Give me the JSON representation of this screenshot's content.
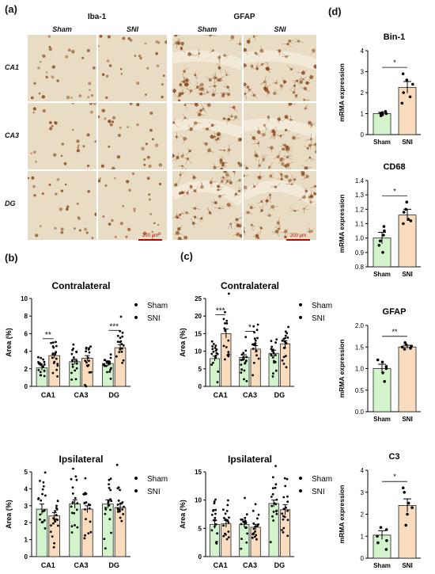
{
  "panels": {
    "a": "(a)",
    "b": "(b)",
    "c": "(c)",
    "d": "(d)"
  },
  "micrographs": {
    "iba1": "Iba-1",
    "gfap": "GFAP",
    "sham": "Sham",
    "sni": "SNI",
    "rows": [
      "CA1",
      "CA3",
      "DG"
    ],
    "scale": "200 μm",
    "stain_color": "#8b4a1c",
    "bg_color": "#e9dcc4"
  },
  "colors": {
    "sham": "#d2f3cc",
    "sni": "#f9dcbd",
    "bar_edge": "#222222"
  },
  "chart_data": [
    {
      "id": "b-contra",
      "type": "bar",
      "title": "Contralateral",
      "ylabel": "Area (%)",
      "ylim": [
        0,
        10
      ],
      "yticks": [
        "0",
        "2",
        "4",
        "6",
        "8",
        "10"
      ],
      "categories": [
        "CA1",
        "CA3",
        "DG"
      ],
      "series": [
        {
          "name": "Sham",
          "values": [
            2.1,
            2.8,
            2.6
          ],
          "sem": [
            0.25,
            0.3,
            0.3
          ]
        },
        {
          "name": "SNI",
          "values": [
            3.5,
            3.2,
            4.4
          ],
          "sem": [
            0.3,
            0.3,
            0.35
          ]
        }
      ],
      "significance": [
        {
          "category": "CA1",
          "label": "**"
        },
        {
          "category": "DG",
          "label": "***"
        }
      ],
      "legend": "top-right"
    },
    {
      "id": "c-contra",
      "type": "bar",
      "title": "Contralateral",
      "ylabel": "Area (%)",
      "ylim": [
        0,
        25
      ],
      "yticks": [
        "0",
        "5",
        "10",
        "15",
        "20",
        "25"
      ],
      "categories": [
        "CA1",
        "CA3",
        "DG"
      ],
      "series": [
        {
          "name": "Sham",
          "values": [
            7.9,
            8.2,
            9.4
          ],
          "sem": [
            0.7,
            0.8,
            0.9
          ]
        },
        {
          "name": "SNI",
          "values": [
            15.0,
            10.6,
            12.1
          ],
          "sem": [
            1.3,
            1.0,
            0.9
          ]
        }
      ],
      "significance": [
        {
          "category": "CA1",
          "label": "***"
        },
        {
          "category": "CA3",
          "label": "*"
        }
      ],
      "legend": "top-right"
    },
    {
      "id": "b-ipsi",
      "type": "bar",
      "title": "Ipsilateral",
      "ylabel": "Area (%)",
      "ylim": [
        0,
        5
      ],
      "yticks": [
        "0",
        "1",
        "2",
        "3",
        "4",
        "5"
      ],
      "categories": [
        "CA1",
        "CA3",
        "DG"
      ],
      "series": [
        {
          "name": "Sham",
          "values": [
            2.8,
            3.1,
            3.1
          ],
          "sem": [
            0.3,
            0.25,
            0.25
          ]
        },
        {
          "name": "SNI",
          "values": [
            2.4,
            2.8,
            2.9
          ],
          "sem": [
            0.2,
            0.2,
            0.2
          ]
        }
      ],
      "significance": [],
      "legend": "top-right"
    },
    {
      "id": "c-ipsi",
      "type": "bar",
      "title": "Ipsilateral",
      "ylabel": "Area (%)",
      "ylim": [
        0,
        15
      ],
      "yticks": [
        "0",
        "5",
        "10",
        "15"
      ],
      "categories": [
        "CA1",
        "CA3",
        "DG"
      ],
      "series": [
        {
          "name": "Sham",
          "values": [
            5.7,
            5.7,
            9.4
          ],
          "sem": [
            0.7,
            0.5,
            0.6
          ]
        },
        {
          "name": "SNI",
          "values": [
            5.8,
            5.2,
            8.3
          ],
          "sem": [
            0.6,
            0.5,
            0.9
          ]
        }
      ],
      "significance": [],
      "legend": "top-right"
    },
    {
      "id": "d-bin1",
      "type": "bar",
      "title": "Bin-1",
      "ylabel": "mRMA expression",
      "ylim": [
        0,
        4
      ],
      "yticks": [
        "0",
        "1",
        "2",
        "3",
        "4"
      ],
      "categories": [
        "Sham",
        "SNI"
      ],
      "values": [
        1.0,
        2.25
      ],
      "sem": [
        0.06,
        0.28
      ],
      "points": [
        [
          0.9,
          1.0,
          1.05,
          1.1,
          0.95,
          1.0
        ],
        [
          1.5,
          2.0,
          2.4,
          2.6,
          2.9,
          1.8
        ]
      ],
      "significance": "*"
    },
    {
      "id": "d-cd68",
      "type": "bar",
      "title": "CD68",
      "ylabel": "mRMA expression",
      "ylim": [
        0.8,
        1.4
      ],
      "yticks": [
        "0.8",
        "0.9",
        "1.0",
        "1.1",
        "1.2",
        "1.3",
        "1.4"
      ],
      "categories": [
        "Sham",
        "SNI"
      ],
      "values": [
        1.0,
        1.16
      ],
      "sem": [
        0.04,
        0.04
      ],
      "points": [
        [
          0.9,
          0.95,
          1.05,
          1.08,
          0.98,
          1.02
        ],
        [
          1.1,
          1.13,
          1.18,
          1.2,
          1.25,
          1.12
        ]
      ],
      "significance": "*"
    },
    {
      "id": "d-gfap",
      "type": "bar",
      "title": "GFAP",
      "ylabel": "mRMA expression",
      "ylim": [
        0,
        2.0
      ],
      "yticks": [
        "0.0",
        "0.5",
        "1.0",
        "1.5",
        "2.0"
      ],
      "categories": [
        "Sham",
        "SNI"
      ],
      "values": [
        1.0,
        1.5
      ],
      "sem": [
        0.1,
        0.04
      ],
      "points": [
        [
          0.7,
          0.9,
          1.0,
          1.15,
          1.2,
          1.05
        ],
        [
          1.45,
          1.5,
          1.55,
          1.6,
          1.47,
          1.52
        ]
      ],
      "significance": "**"
    },
    {
      "id": "d-c3",
      "type": "bar",
      "title": "C3",
      "ylabel": "mRMA expression",
      "ylim": [
        0,
        4
      ],
      "yticks": [
        "0",
        "1",
        "2",
        "3",
        "4"
      ],
      "categories": [
        "Sham",
        "SNI"
      ],
      "values": [
        1.05,
        2.4
      ],
      "sem": [
        0.2,
        0.3
      ],
      "points": [
        [
          0.4,
          0.8,
          1.0,
          1.4,
          1.3,
          0.7
        ],
        [
          1.5,
          2.0,
          2.5,
          3.0,
          3.2,
          2.3
        ]
      ],
      "significance": "*"
    }
  ]
}
